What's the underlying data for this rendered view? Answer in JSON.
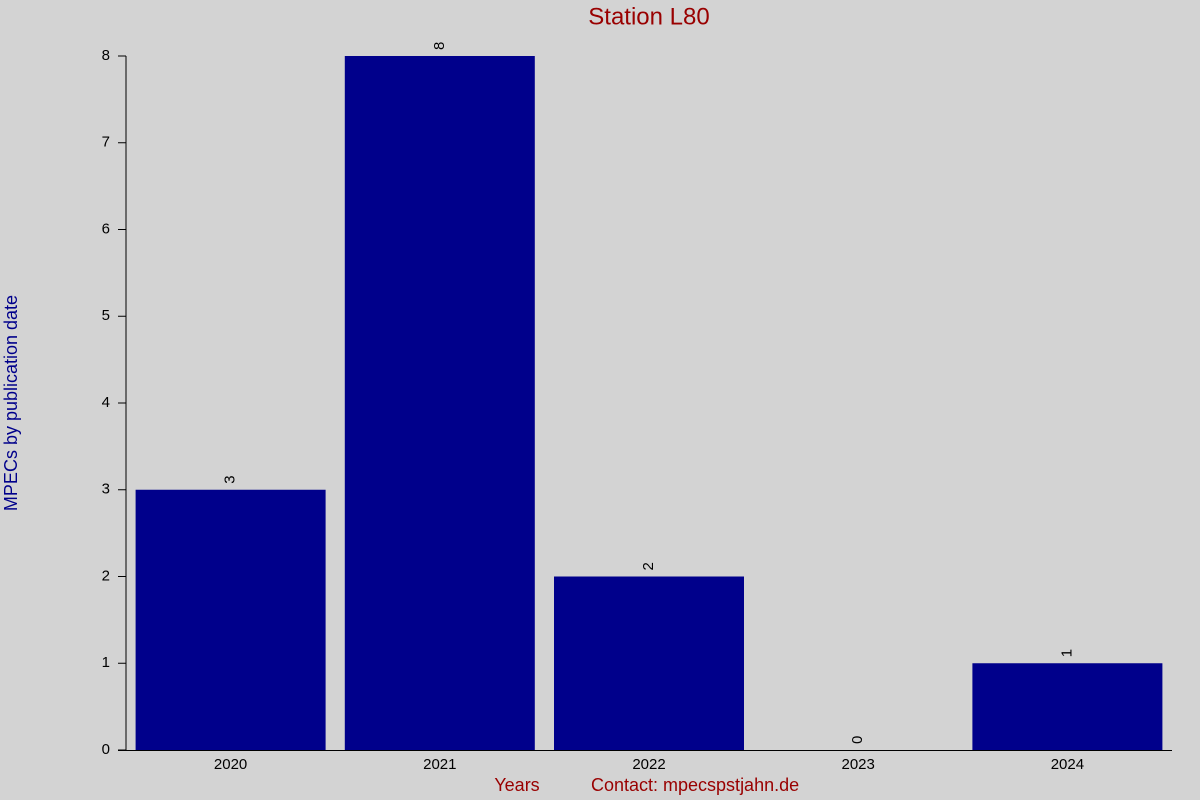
{
  "chart_data": {
    "type": "bar",
    "title": "Station L80",
    "y_label": "MPECs by publication date",
    "x_label": "Years",
    "contact": "Contact: mpecspstjahn.de",
    "categories": [
      "2020",
      "2021",
      "2022",
      "2023",
      "2024"
    ],
    "values": [
      3,
      8,
      2,
      0,
      1
    ],
    "color": "#00008b",
    "title_color": "#990000",
    "y_label_color": "#00008b",
    "x_label_color": "#990000",
    "ylim": [
      0,
      8
    ],
    "yticks": [
      0,
      1,
      2,
      3,
      4,
      5,
      6,
      7,
      8
    ],
    "grid": false
  }
}
